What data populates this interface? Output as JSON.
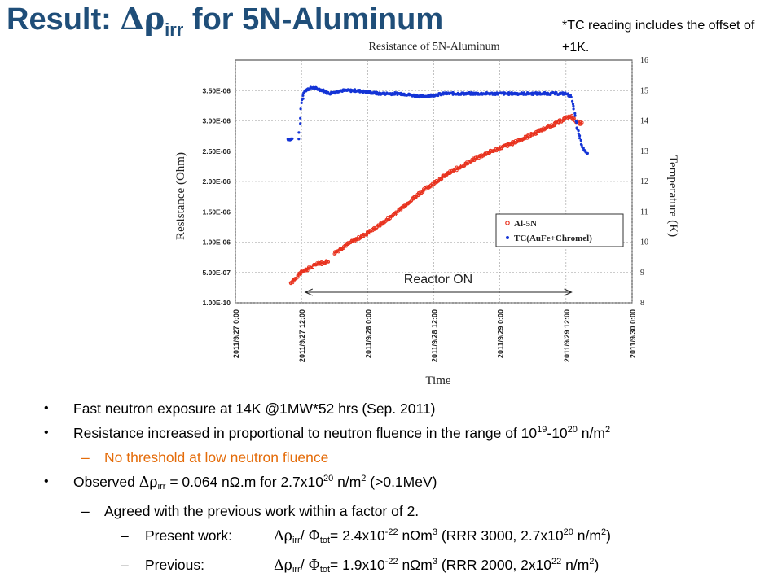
{
  "slide": {
    "title_prefix": "Result: ",
    "title_symbol": "Δρ",
    "title_sub": "irr",
    "title_suffix": " for 5N-Aluminum",
    "note": "*TC reading includes the offset of +1K."
  },
  "chart_data": {
    "type": "scatter",
    "title": "Resistance of 5N-Aluminum",
    "xlabel": "Time",
    "ylabel_left": "Resistance (Ohm)",
    "ylabel_right": "Temperature (K)",
    "x_ticks": [
      "2011/9/27 0:00",
      "2011/9/27 12:00",
      "2011/9/28 0:00",
      "2011/9/28 12:00",
      "2011/9/29 0:00",
      "2011/9/29 12:00",
      "2011/9/30 0:00"
    ],
    "y_left_ticks": [
      "1.00E-10",
      "5.00E-07",
      "1.00E-06",
      "1.50E-06",
      "2.00E-06",
      "2.50E-06",
      "3.00E-06",
      "3.50E-06"
    ],
    "y_right_ticks": [
      "8",
      "9",
      "10",
      "11",
      "12",
      "13",
      "14",
      "15",
      "16"
    ],
    "ylim_left": [
      0,
      4e-06
    ],
    "ylim_right": [
      8,
      16
    ],
    "xlim_hours": [
      0,
      72
    ],
    "legend_position": "right",
    "grid": true,
    "annotation": "Reactor ON",
    "reactor_on_hours": [
      11.5,
      61
    ],
    "series": [
      {
        "name": "Al-5N",
        "color": "#e8321e",
        "axis": "left",
        "x_hours": [
          10,
          11,
          12,
          13,
          14,
          15,
          16,
          17,
          18,
          20,
          22,
          24,
          26,
          28,
          30,
          32,
          34,
          36,
          38,
          40,
          42,
          44,
          46,
          48,
          50,
          52,
          54,
          56,
          58,
          60,
          61,
          62,
          63
        ],
        "values": [
          3.3e-07,
          4e-07,
          5.2e-07,
          5.5e-07,
          6e-07,
          6.6e-07,
          6.5e-07,
          7e-07,
          8.2e-07,
          9.5e-07,
          1.05e-06,
          1.15e-06,
          1.27e-06,
          1.4e-06,
          1.55e-06,
          1.7e-06,
          1.85e-06,
          1.97e-06,
          2.1e-06,
          2.2e-06,
          2.3e-06,
          2.4e-06,
          2.48e-06,
          2.55e-06,
          2.62e-06,
          2.7e-06,
          2.78e-06,
          2.87e-06,
          2.95e-06,
          3.05e-06,
          3.07e-06,
          2.98e-06,
          2.95e-06
        ]
      },
      {
        "name": "TC(AuFe+Chromel)",
        "color": "#1434d6",
        "axis": "right",
        "x_hours": [
          9.5,
          10.5,
          11.5,
          12,
          12.5,
          14,
          16,
          17,
          19,
          22,
          26,
          30,
          34,
          38,
          42,
          46,
          50,
          54,
          58,
          60,
          61,
          62,
          63,
          64
        ],
        "values": [
          13.4,
          13.4,
          13.4,
          14.6,
          15.0,
          15.1,
          15.0,
          14.9,
          15.0,
          15.0,
          14.9,
          14.9,
          14.8,
          14.9,
          14.9,
          14.9,
          14.9,
          14.9,
          14.9,
          14.9,
          14.8,
          13.8,
          13.1,
          12.9
        ]
      }
    ]
  },
  "bullets": {
    "b1": "Fast neutron exposure at 14K @1MW*52 hrs (Sep. 2011)",
    "b2_text": "Resistance increased in proportional to neutron fluence in the range of 10",
    "b2_e1": "19",
    "b2_mid": "-10",
    "b2_e2": "20",
    "b2_end": " n/m",
    "b2_e3": "2",
    "b2_sub_dash": "–",
    "b2_sub": "No threshold at low neutron fluence",
    "b3_pre": "Observed ",
    "b3_sym": "Δρ",
    "b3_s": "irr",
    "b3_mid": " = 0.064 nΩ.m for 2.7x10",
    "b3_e1": "20",
    "b3_mid2": " n/m",
    "b3_e2": "2",
    "b3_end": " (>0.1MeV)",
    "b3_sub_dash": "–",
    "b3_sub": "Agreed with the previous work within a factor of 2.",
    "p_dash": "–",
    "p_label": "Present work:",
    "p_sym1": "Δρ",
    "p_s1": "irr",
    "p_slash": "/ ",
    "p_sym2": "Φ",
    "p_s2": "tot",
    "p_val": "= 2.4x10",
    "p_e1": "-22",
    "p_unit": " nΩm",
    "p_e2": "3",
    "p_rrr": " (RRR 3000, 2.7x10",
    "p_e3": "20",
    "p_unit2": " n/m",
    "p_e4": "2",
    "p_close": ")",
    "v_dash": "–",
    "v_label": "Previous:",
    "v_sym1": "Δρ",
    "v_s1": "irr",
    "v_slash": "/ ",
    "v_sym2": "Φ",
    "v_s2": "tot",
    "v_val": "= 1.9x10",
    "v_e1": "-22",
    "v_unit": " nΩm",
    "v_e2": "3",
    "v_rrr": " (RRR 2000, 2x10",
    "v_e3": "22",
    "v_unit2": " n/m",
    "v_e4": "2",
    "v_close": ")"
  }
}
